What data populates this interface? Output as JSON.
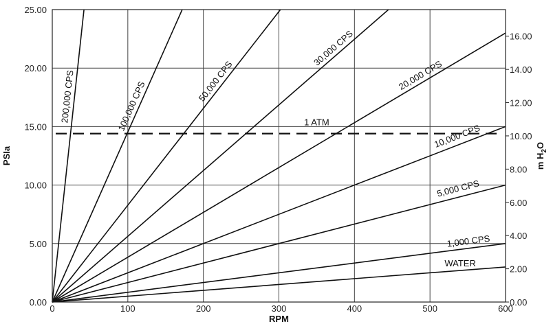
{
  "chart_data": {
    "type": "line",
    "title": "",
    "xlabel": "RPM",
    "ylabel": "PSIa",
    "y2label": "m H2O",
    "xlim": [
      0,
      600
    ],
    "ylim": [
      0,
      25
    ],
    "y2lim": [
      0,
      17.6
    ],
    "grid": true,
    "x_ticks": [
      "0",
      "100",
      "200",
      "300",
      "400",
      "500",
      "600"
    ],
    "y_ticks": [
      "0.00",
      "5.00",
      "10.00",
      "15.00",
      "20.00",
      "25.00"
    ],
    "y2_ticks": [
      "0.00",
      "2.00",
      "4.00",
      "6.00",
      "8.00",
      "10.00",
      "12.00",
      "14.00",
      "16.00"
    ],
    "reference_line": {
      "label": "1 ATM",
      "y": 14.4,
      "style": "dashed"
    },
    "series": [
      {
        "name": "200,000 CPS",
        "x": [
          0,
          42
        ],
        "y": [
          0,
          25
        ]
      },
      {
        "name": "100,000 CPS",
        "x": [
          0,
          172
        ],
        "y": [
          0,
          25
        ]
      },
      {
        "name": "50,000 CPS",
        "x": [
          0,
          302
        ],
        "y": [
          0,
          25
        ]
      },
      {
        "name": "30,000 CPS",
        "x": [
          0,
          445
        ],
        "y": [
          0,
          25
        ]
      },
      {
        "name": "20,000 CPS",
        "x": [
          0,
          600
        ],
        "y": [
          0,
          23.0
        ]
      },
      {
        "name": "10,000 CPS",
        "x": [
          0,
          600
        ],
        "y": [
          0,
          15.0
        ]
      },
      {
        "name": "5,000 CPS",
        "x": [
          0,
          600
        ],
        "y": [
          0,
          10.0
        ]
      },
      {
        "name": "1,000 CPS",
        "x": [
          0,
          600
        ],
        "y": [
          0,
          5.0
        ]
      },
      {
        "name": "WATER",
        "x": [
          0,
          600
        ],
        "y": [
          0,
          3.0
        ]
      }
    ]
  }
}
